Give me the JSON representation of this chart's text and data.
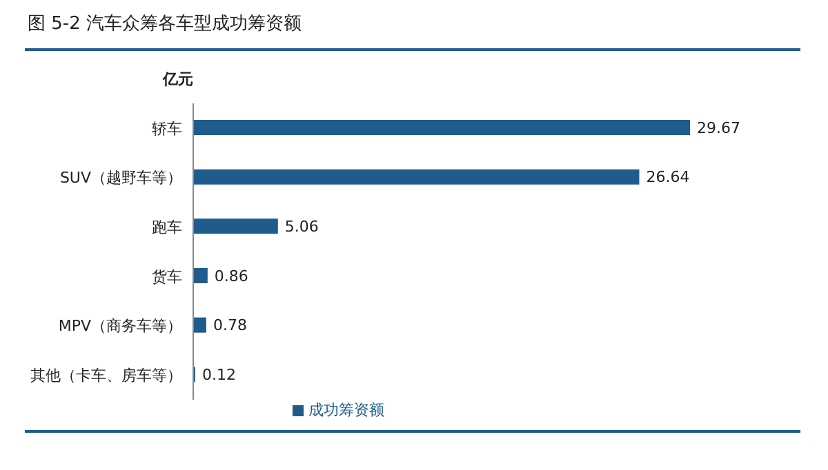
{
  "chart_data": {
    "type": "bar",
    "orientation": "horizontal",
    "title": "图 5-2 汽车众筹各车型成功筹资额",
    "xlabel": "亿元",
    "categories": [
      "轿车",
      "SUV（越野车等）",
      "跑车",
      "货车",
      "MPV（商务车等）",
      "其他（卡车、房车等）"
    ],
    "series": [
      {
        "name": "成功筹资额",
        "color": "#1f5c8b",
        "values": [
          29.67,
          26.64,
          5.06,
          0.86,
          0.78,
          0.12
        ]
      }
    ],
    "data_labels": true,
    "legend": "bottom",
    "grid": false
  }
}
